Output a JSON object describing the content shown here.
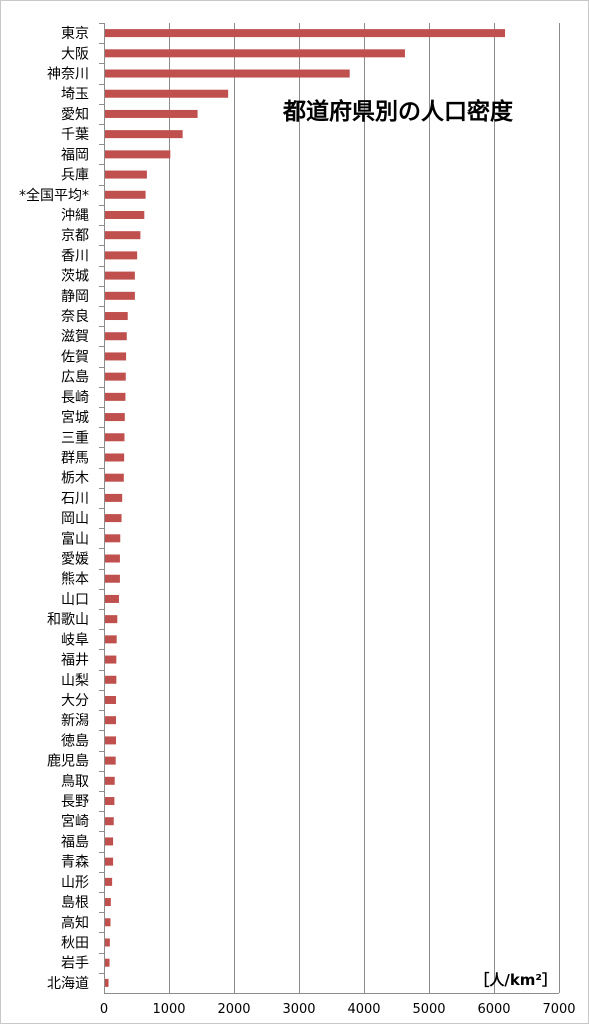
{
  "chart_data": {
    "type": "bar",
    "orientation": "horizontal",
    "title": "都道府県別の人口密度",
    "unit_label": "［人/km²］",
    "xlim": [
      0,
      7000
    ],
    "x_ticks": [
      0,
      1000,
      2000,
      3000,
      4000,
      5000,
      6000,
      7000
    ],
    "grid": true,
    "bar_color": "#c0504d",
    "categories": [
      "東京",
      "大阪",
      "神奈川",
      "埼玉",
      "愛知",
      "千葉",
      "福岡",
      "兵庫",
      "*全国平均*",
      "沖縄",
      "京都",
      "香川",
      "茨城",
      "静岡",
      "奈良",
      "滋賀",
      "佐賀",
      "広島",
      "長崎",
      "宮城",
      "三重",
      "群馬",
      "栃木",
      "石川",
      "岡山",
      "富山",
      "愛媛",
      "熊本",
      "山口",
      "和歌山",
      "岐阜",
      "福井",
      "山梨",
      "大分",
      "新潟",
      "徳島",
      "鹿児島",
      "鳥取",
      "長野",
      "宮崎",
      "福島",
      "青森",
      "山形",
      "島根",
      "高知",
      "秋田",
      "岩手",
      "北海道"
    ],
    "values": [
      6170,
      4630,
      3780,
      1910,
      1440,
      1210,
      1020,
      660,
      640,
      620,
      560,
      510,
      475,
      475,
      365,
      350,
      340,
      335,
      330,
      320,
      315,
      310,
      305,
      280,
      270,
      250,
      245,
      245,
      230,
      205,
      195,
      190,
      190,
      185,
      185,
      185,
      180,
      165,
      160,
      150,
      140,
      140,
      125,
      105,
      100,
      90,
      85,
      70
    ]
  }
}
